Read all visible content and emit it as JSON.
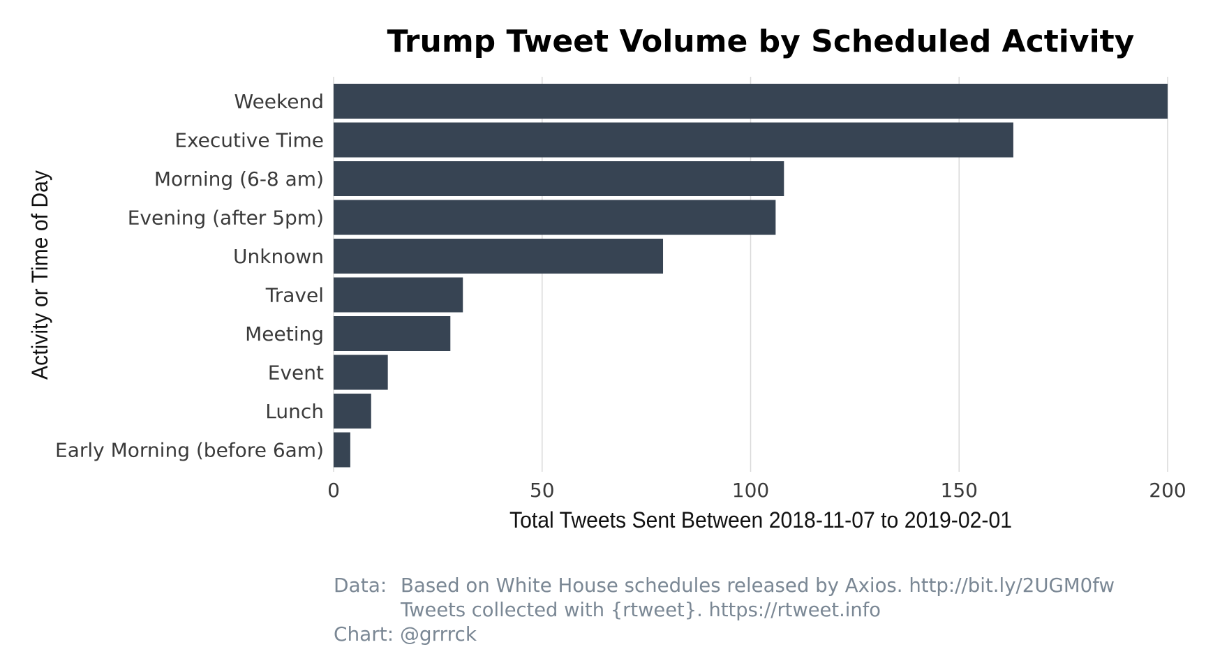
{
  "chart_data": {
    "type": "bar",
    "orientation": "horizontal",
    "title": "Trump Tweet Volume by Scheduled Activity",
    "xlabel": "Total Tweets Sent Between 2018-11-07 to 2019-02-01",
    "ylabel": "Activity or Time of Day",
    "categories": [
      "Weekend",
      "Executive Time",
      "Morning (6-8 am)",
      "Evening (after 5pm)",
      "Unknown",
      "Travel",
      "Meeting",
      "Event",
      "Lunch",
      "Early Morning (before 6am)"
    ],
    "values": [
      200,
      163,
      108,
      106,
      79,
      31,
      28,
      13,
      9,
      4
    ],
    "xlim": [
      0,
      200
    ],
    "xticks": [
      0,
      50,
      100,
      150,
      200
    ],
    "bar_color": "#374453",
    "grid": "vertical",
    "legend": "none"
  },
  "caption": {
    "data_label": "Data:",
    "data_line1": "Based on White House schedules released by Axios. http://bit.ly/2UGM0fw",
    "data_line2": "Tweets collected with {rtweet}. https://rtweet.info",
    "chart_line": "Chart: @grrrck"
  },
  "colors": {
    "caption": "#7a8794",
    "gridline": "#d9d9d9"
  }
}
